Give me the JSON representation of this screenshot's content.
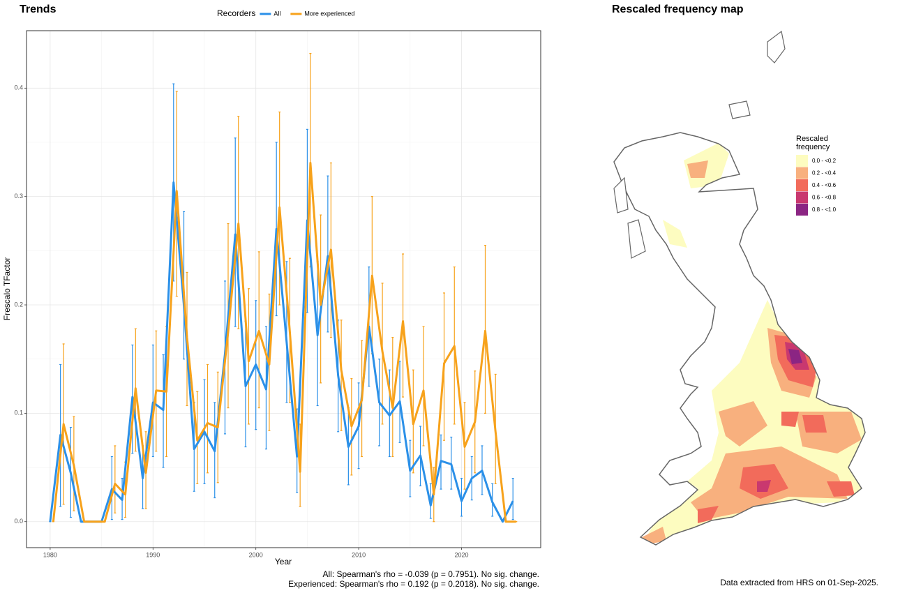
{
  "chart_data": [
    {
      "type": "line",
      "title": "Trends",
      "xlabel": "Year",
      "ylabel": "Frescalo TFactor",
      "legend_title": "Recorders",
      "x": [
        1980,
        1981,
        1982,
        1983,
        1984,
        1985,
        1986,
        1987,
        1988,
        1989,
        1990,
        1991,
        1992,
        1993,
        1994,
        1995,
        1996,
        1997,
        1998,
        1999,
        2000,
        2001,
        2002,
        2003,
        2004,
        2005,
        2006,
        2007,
        2008,
        2009,
        2010,
        2011,
        2012,
        2013,
        2014,
        2015,
        2016,
        2017,
        2018,
        2019,
        2020,
        2021,
        2022,
        2023,
        2024,
        2025
      ],
      "series": [
        {
          "name": "All",
          "color": "#2b90e8",
          "values": [
            0,
            0.08,
            0.045,
            0,
            0,
            0,
            0.03,
            0.02,
            0.115,
            0.04,
            0.11,
            0.103,
            0.313,
            0.2,
            0.067,
            0.083,
            0.065,
            0.155,
            0.265,
            0.125,
            0.145,
            0.122,
            0.27,
            0.165,
            0.06,
            0.278,
            0.172,
            0.245,
            0.135,
            0.069,
            0.088,
            0.18,
            0.11,
            0.098,
            0.111,
            0.047,
            0.061,
            0.015,
            0.056,
            0.053,
            0.019,
            0.04,
            0.047,
            0.018,
            0,
            0.019
          ],
          "lower": [
            0,
            0.014,
            0.004,
            0,
            0,
            0,
            0.002,
            0.002,
            0.063,
            0.012,
            0.06,
            0.05,
            0.222,
            0.15,
            0.028,
            0.035,
            0.022,
            0.081,
            0.18,
            0.069,
            0.085,
            0.067,
            0.19,
            0.11,
            0.027,
            0.193,
            0.107,
            0.175,
            0.083,
            0.034,
            0.049,
            0.125,
            0.07,
            0.06,
            0.073,
            0.023,
            0.033,
            0.003,
            0.03,
            0.03,
            0.005,
            0.02,
            0.025,
            0.005,
            0,
            0.002
          ],
          "upper": [
            0,
            0.145,
            0.087,
            0,
            0,
            0,
            0.06,
            0.04,
            0.163,
            0.07,
            0.163,
            0.154,
            0.404,
            0.286,
            0.11,
            0.131,
            0.11,
            0.222,
            0.354,
            0.185,
            0.204,
            0.18,
            0.35,
            0.24,
            0.104,
            0.362,
            0.24,
            0.319,
            0.186,
            0.105,
            0.128,
            0.235,
            0.15,
            0.14,
            0.148,
            0.075,
            0.088,
            0.035,
            0.08,
            0.078,
            0.04,
            0.06,
            0.07,
            0.035,
            0,
            0.04
          ]
        },
        {
          "name": "More experienced",
          "color": "#f7a21b",
          "values": [
            0,
            0.09,
            0.052,
            0,
            0,
            0,
            0.035,
            0.025,
            0.123,
            0.045,
            0.121,
            0.12,
            0.305,
            0.17,
            0.075,
            0.091,
            0.087,
            0.175,
            0.275,
            0.148,
            0.176,
            0.145,
            0.29,
            0.175,
            0.046,
            0.331,
            0.2,
            0.251,
            0.14,
            0.088,
            0.112,
            0.227,
            0.157,
            0.105,
            0.185,
            0.09,
            0.121,
            0.025,
            0.146,
            0.162,
            0.069,
            0.092,
            0.176,
            0.083,
            0,
            0
          ],
          "lower": [
            0,
            0.016,
            0.01,
            0,
            0,
            0,
            0.008,
            0.004,
            0.065,
            0.012,
            0.065,
            0.06,
            0.208,
            0.107,
            0.035,
            0.045,
            0.036,
            0.105,
            0.178,
            0.09,
            0.105,
            0.084,
            0.2,
            0.11,
            0.014,
            0.235,
            0.128,
            0.17,
            0.084,
            0.043,
            0.06,
            0.155,
            0.09,
            0.06,
            0.115,
            0.045,
            0.07,
            0,
            0.075,
            0.09,
            0.03,
            0.045,
            0.1,
            0.035,
            0,
            0
          ],
          "upper": [
            0,
            0.164,
            0.097,
            0,
            0,
            0,
            0.07,
            0.055,
            0.178,
            0.083,
            0.176,
            0.18,
            0.397,
            0.23,
            0.12,
            0.145,
            0.138,
            0.275,
            0.374,
            0.215,
            0.249,
            0.21,
            0.378,
            0.243,
            0.09,
            0.432,
            0.283,
            0.331,
            0.186,
            0.132,
            0.167,
            0.3,
            0.22,
            0.17,
            0.247,
            0.14,
            0.18,
            0.05,
            0.211,
            0.235,
            0.11,
            0.139,
            0.255,
            0.136,
            0,
            0
          ]
        }
      ],
      "xlim": [
        1977.7,
        2027.7
      ],
      "ylim": [
        -0.024,
        0.453
      ],
      "xticks": [
        1980,
        1990,
        2000,
        2010,
        2020
      ],
      "yticks": [
        {
          "value": 0,
          "label": "0.0"
        },
        0.1,
        0.2,
        0.3,
        0.4
      ],
      "grid": true,
      "annotations": [
        "All: Spearman's rho = -0.039 (p = 0.7951). No sig. change.",
        "Experienced: Spearman's rho = 0.192 (p = 0.2018). No sig. change."
      ]
    },
    {
      "type": "map",
      "title": "Rescaled frequency map",
      "legend_title": "Rescaled frequency",
      "legend": [
        {
          "label": "0.0 - <0.2",
          "color": "#fdfcc0"
        },
        {
          "label": "0.2 - <0.4",
          "color": "#f8b07e"
        },
        {
          "label": "0.4 - <0.6",
          "color": "#f26b5b"
        },
        {
          "label": "0.6 - <0.8",
          "color": "#c9386f"
        },
        {
          "label": "0.8 - <1.0",
          "color": "#8b2583"
        }
      ],
      "caption": "Data extracted from HRS on 01-Sep-2025."
    }
  ]
}
